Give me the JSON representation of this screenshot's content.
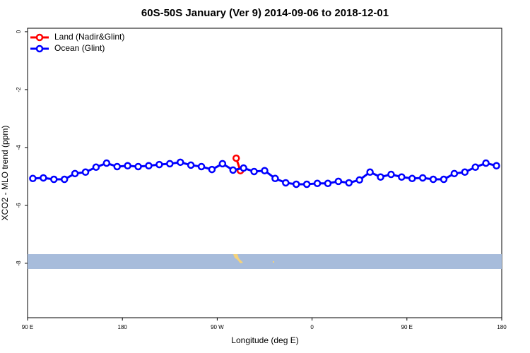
{
  "chart_data": {
    "type": "line",
    "title": "60S-50S January (Ver 9)   2014-09-06 to 2018-12-01",
    "x_label": "Longitude (deg E)",
    "y_label": "XCO2 - MLO trend (ppm)",
    "xlim": [
      90,
      540
    ],
    "ylim": [
      -9.88,
      0.12
    ],
    "xticks": [
      {
        "value": 90,
        "label": "90 E"
      },
      180,
      {
        "value": 270,
        "label": "90 W"
      },
      {
        "value": 360,
        "label": "0"
      },
      {
        "value": 450,
        "label": "90 E"
      },
      {
        "value": 540,
        "label": "180"
      }
    ],
    "yticks": [
      0,
      -2,
      -4,
      -6,
      -8
    ],
    "legend": "top-left",
    "series": [
      {
        "name": "Land (Nadir&Glint)",
        "color": "#ff0000",
        "x": [
          288,
          292
        ],
        "values": [
          -4.37,
          -4.8
        ]
      },
      {
        "name": "Ocean (Glint)",
        "color": "#0000ff",
        "x": [
          95,
          105,
          115,
          125,
          135,
          145,
          155,
          165,
          175,
          185,
          195,
          205,
          215,
          225,
          235,
          245,
          255,
          265,
          275,
          285,
          295,
          305,
          315,
          325,
          335,
          345,
          355,
          365,
          375,
          385,
          395,
          405,
          415,
          425,
          435,
          445,
          455,
          465,
          475,
          485,
          495,
          505,
          515,
          525,
          535
        ],
        "values": [
          -5.07,
          -5.05,
          -5.1,
          -5.1,
          -4.9,
          -4.85,
          -4.68,
          -4.54,
          -4.66,
          -4.63,
          -4.66,
          -4.63,
          -4.59,
          -4.56,
          -4.51,
          -4.61,
          -4.66,
          -4.76,
          -4.56,
          -4.78,
          -4.71,
          -4.83,
          -4.8,
          -5.07,
          -5.22,
          -5.27,
          -5.27,
          -5.24,
          -5.24,
          -5.17,
          -5.22,
          -5.12,
          -4.85,
          -5.02,
          -4.93,
          -5.02,
          -5.07,
          -5.05,
          -5.1,
          -5.1,
          -4.9,
          -4.85,
          -4.68,
          -4.54,
          -4.63
        ]
      }
    ]
  }
}
